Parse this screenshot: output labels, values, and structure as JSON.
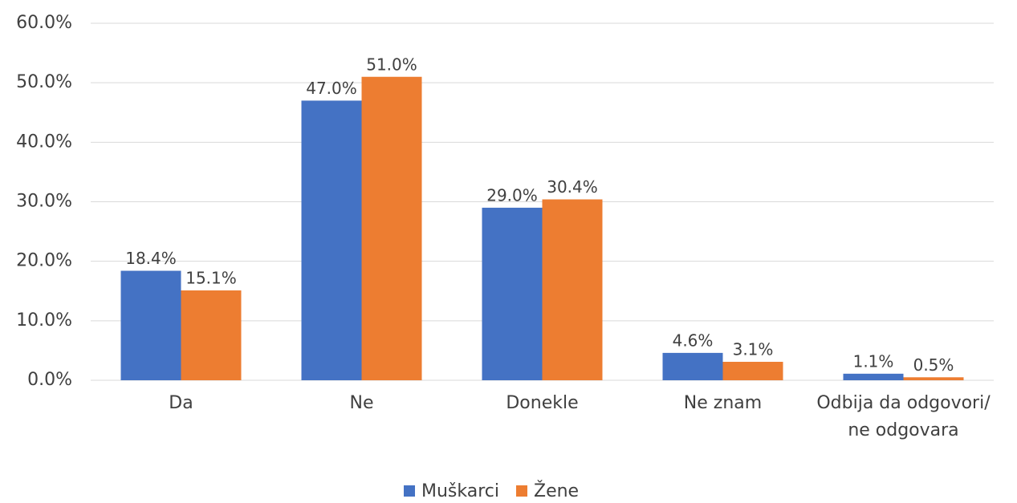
{
  "chart_data": {
    "type": "bar",
    "categories": [
      "Da",
      "Ne",
      "Donekle",
      "Ne znam",
      "Odbija da odgovori/\nne odgovara"
    ],
    "series": [
      {
        "name": "Muškarci",
        "color": "#4472c4",
        "values": [
          18.4,
          47.0,
          29.0,
          4.6,
          1.1
        ],
        "value_labels": [
          "18.4%",
          "47.0%",
          "29.0%",
          "4.6%",
          "1.1%"
        ]
      },
      {
        "name": "Žene",
        "color": "#ed7d31",
        "values": [
          15.1,
          51.0,
          30.4,
          3.1,
          0.5
        ],
        "value_labels": [
          "15.1%",
          "51.0%",
          "30.4%",
          "3.1%",
          "0.5%"
        ]
      }
    ],
    "ylim": [
      0,
      60
    ],
    "yticks": [
      {
        "value": 0,
        "label": "0.0%"
      },
      {
        "value": 10,
        "label": "10.0%"
      },
      {
        "value": 20,
        "label": "20.0%"
      },
      {
        "value": 30,
        "label": "30.0%"
      },
      {
        "value": 40,
        "label": "40.0%"
      },
      {
        "value": 50,
        "label": "50.0%"
      },
      {
        "value": 60,
        "label": "60.0%"
      }
    ],
    "grid": true,
    "legend": "bottom"
  }
}
